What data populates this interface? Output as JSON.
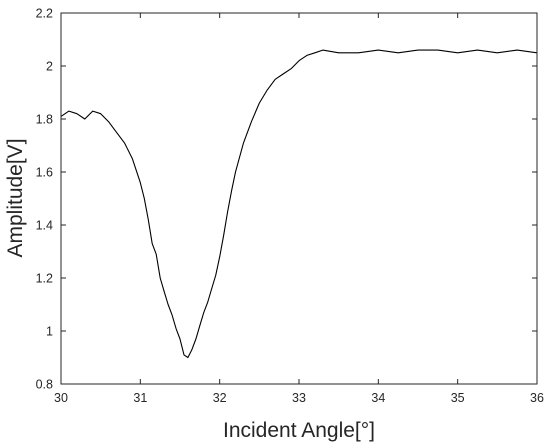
{
  "chart_data": {
    "type": "line",
    "title": "",
    "xlabel": "Incident Angle[°]",
    "ylabel": "Amplitude[V]",
    "xlim": [
      30,
      36
    ],
    "ylim": [
      0.8,
      2.2
    ],
    "x_ticks": [
      "30",
      "31",
      "32",
      "33",
      "34",
      "35",
      "36"
    ],
    "y_ticks": [
      "0.8",
      "1",
      "1.2",
      "1.4",
      "1.6",
      "1.8",
      "2",
      "2.2"
    ],
    "grid": false,
    "legend": "none",
    "line_color": "#000000",
    "series": [
      {
        "x": [
          30.0,
          30.1,
          30.2,
          30.3,
          30.4,
          30.5,
          30.6,
          30.7,
          30.8,
          30.9,
          31.0,
          31.05,
          31.1,
          31.15,
          31.2,
          31.25,
          31.3,
          31.35,
          31.4,
          31.45,
          31.5,
          31.55,
          31.6,
          31.65,
          31.7,
          31.75,
          31.8,
          31.85,
          31.9,
          31.95,
          32.0,
          32.05,
          32.1,
          32.15,
          32.2,
          32.3,
          32.4,
          32.5,
          32.6,
          32.7,
          32.8,
          32.9,
          33.0,
          33.1,
          33.2,
          33.3,
          33.5,
          33.75,
          34.0,
          34.25,
          34.5,
          34.75,
          35.0,
          35.25,
          35.5,
          35.75,
          36.0
        ],
        "y": [
          1.81,
          1.83,
          1.82,
          1.8,
          1.83,
          1.82,
          1.79,
          1.75,
          1.71,
          1.65,
          1.56,
          1.5,
          1.42,
          1.33,
          1.29,
          1.2,
          1.15,
          1.1,
          1.06,
          1.01,
          0.97,
          0.91,
          0.9,
          0.93,
          0.97,
          1.02,
          1.07,
          1.11,
          1.16,
          1.21,
          1.28,
          1.36,
          1.45,
          1.53,
          1.6,
          1.71,
          1.79,
          1.86,
          1.91,
          1.95,
          1.97,
          1.99,
          2.02,
          2.04,
          2.05,
          2.06,
          2.05,
          2.05,
          2.06,
          2.05,
          2.06,
          2.06,
          2.05,
          2.06,
          2.05,
          2.06,
          2.05
        ]
      }
    ]
  }
}
